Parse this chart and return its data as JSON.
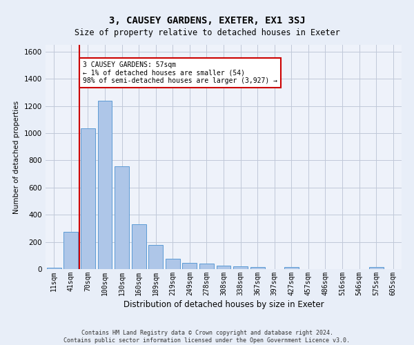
{
  "title": "3, CAUSEY GARDENS, EXETER, EX1 3SJ",
  "subtitle": "Size of property relative to detached houses in Exeter",
  "xlabel": "Distribution of detached houses by size in Exeter",
  "ylabel": "Number of detached properties",
  "footer_line1": "Contains HM Land Registry data © Crown copyright and database right 2024.",
  "footer_line2": "Contains public sector information licensed under the Open Government Licence v3.0.",
  "bin_labels": [
    "11sqm",
    "41sqm",
    "70sqm",
    "100sqm",
    "130sqm",
    "160sqm",
    "189sqm",
    "219sqm",
    "249sqm",
    "278sqm",
    "308sqm",
    "338sqm",
    "367sqm",
    "397sqm",
    "427sqm",
    "457sqm",
    "486sqm",
    "516sqm",
    "546sqm",
    "575sqm",
    "605sqm"
  ],
  "bar_heights": [
    10,
    275,
    1035,
    1240,
    755,
    330,
    180,
    75,
    45,
    40,
    25,
    20,
    15,
    0,
    15,
    0,
    0,
    0,
    0,
    15,
    0
  ],
  "bar_color": "#aec6e8",
  "bar_edge_color": "#5b9bd5",
  "property_line_x": 1.5,
  "property_line_color": "#cc0000",
  "annotation_text": "3 CAUSEY GARDENS: 57sqm\n← 1% of detached houses are smaller (54)\n98% of semi-detached houses are larger (3,927) →",
  "annotation_box_color": "#ffffff",
  "annotation_box_edge": "#cc0000",
  "ylim": [
    0,
    1650
  ],
  "yticks": [
    0,
    200,
    400,
    600,
    800,
    1000,
    1200,
    1400,
    1600
  ],
  "grid_color": "#c0c8d8",
  "background_color": "#e8eef8",
  "plot_bg_color": "#eef2fa",
  "title_fontsize": 10,
  "subtitle_fontsize": 8.5,
  "xlabel_fontsize": 8.5,
  "ylabel_fontsize": 7.5,
  "tick_fontsize": 7,
  "annotation_fontsize": 7,
  "footer_fontsize": 6
}
